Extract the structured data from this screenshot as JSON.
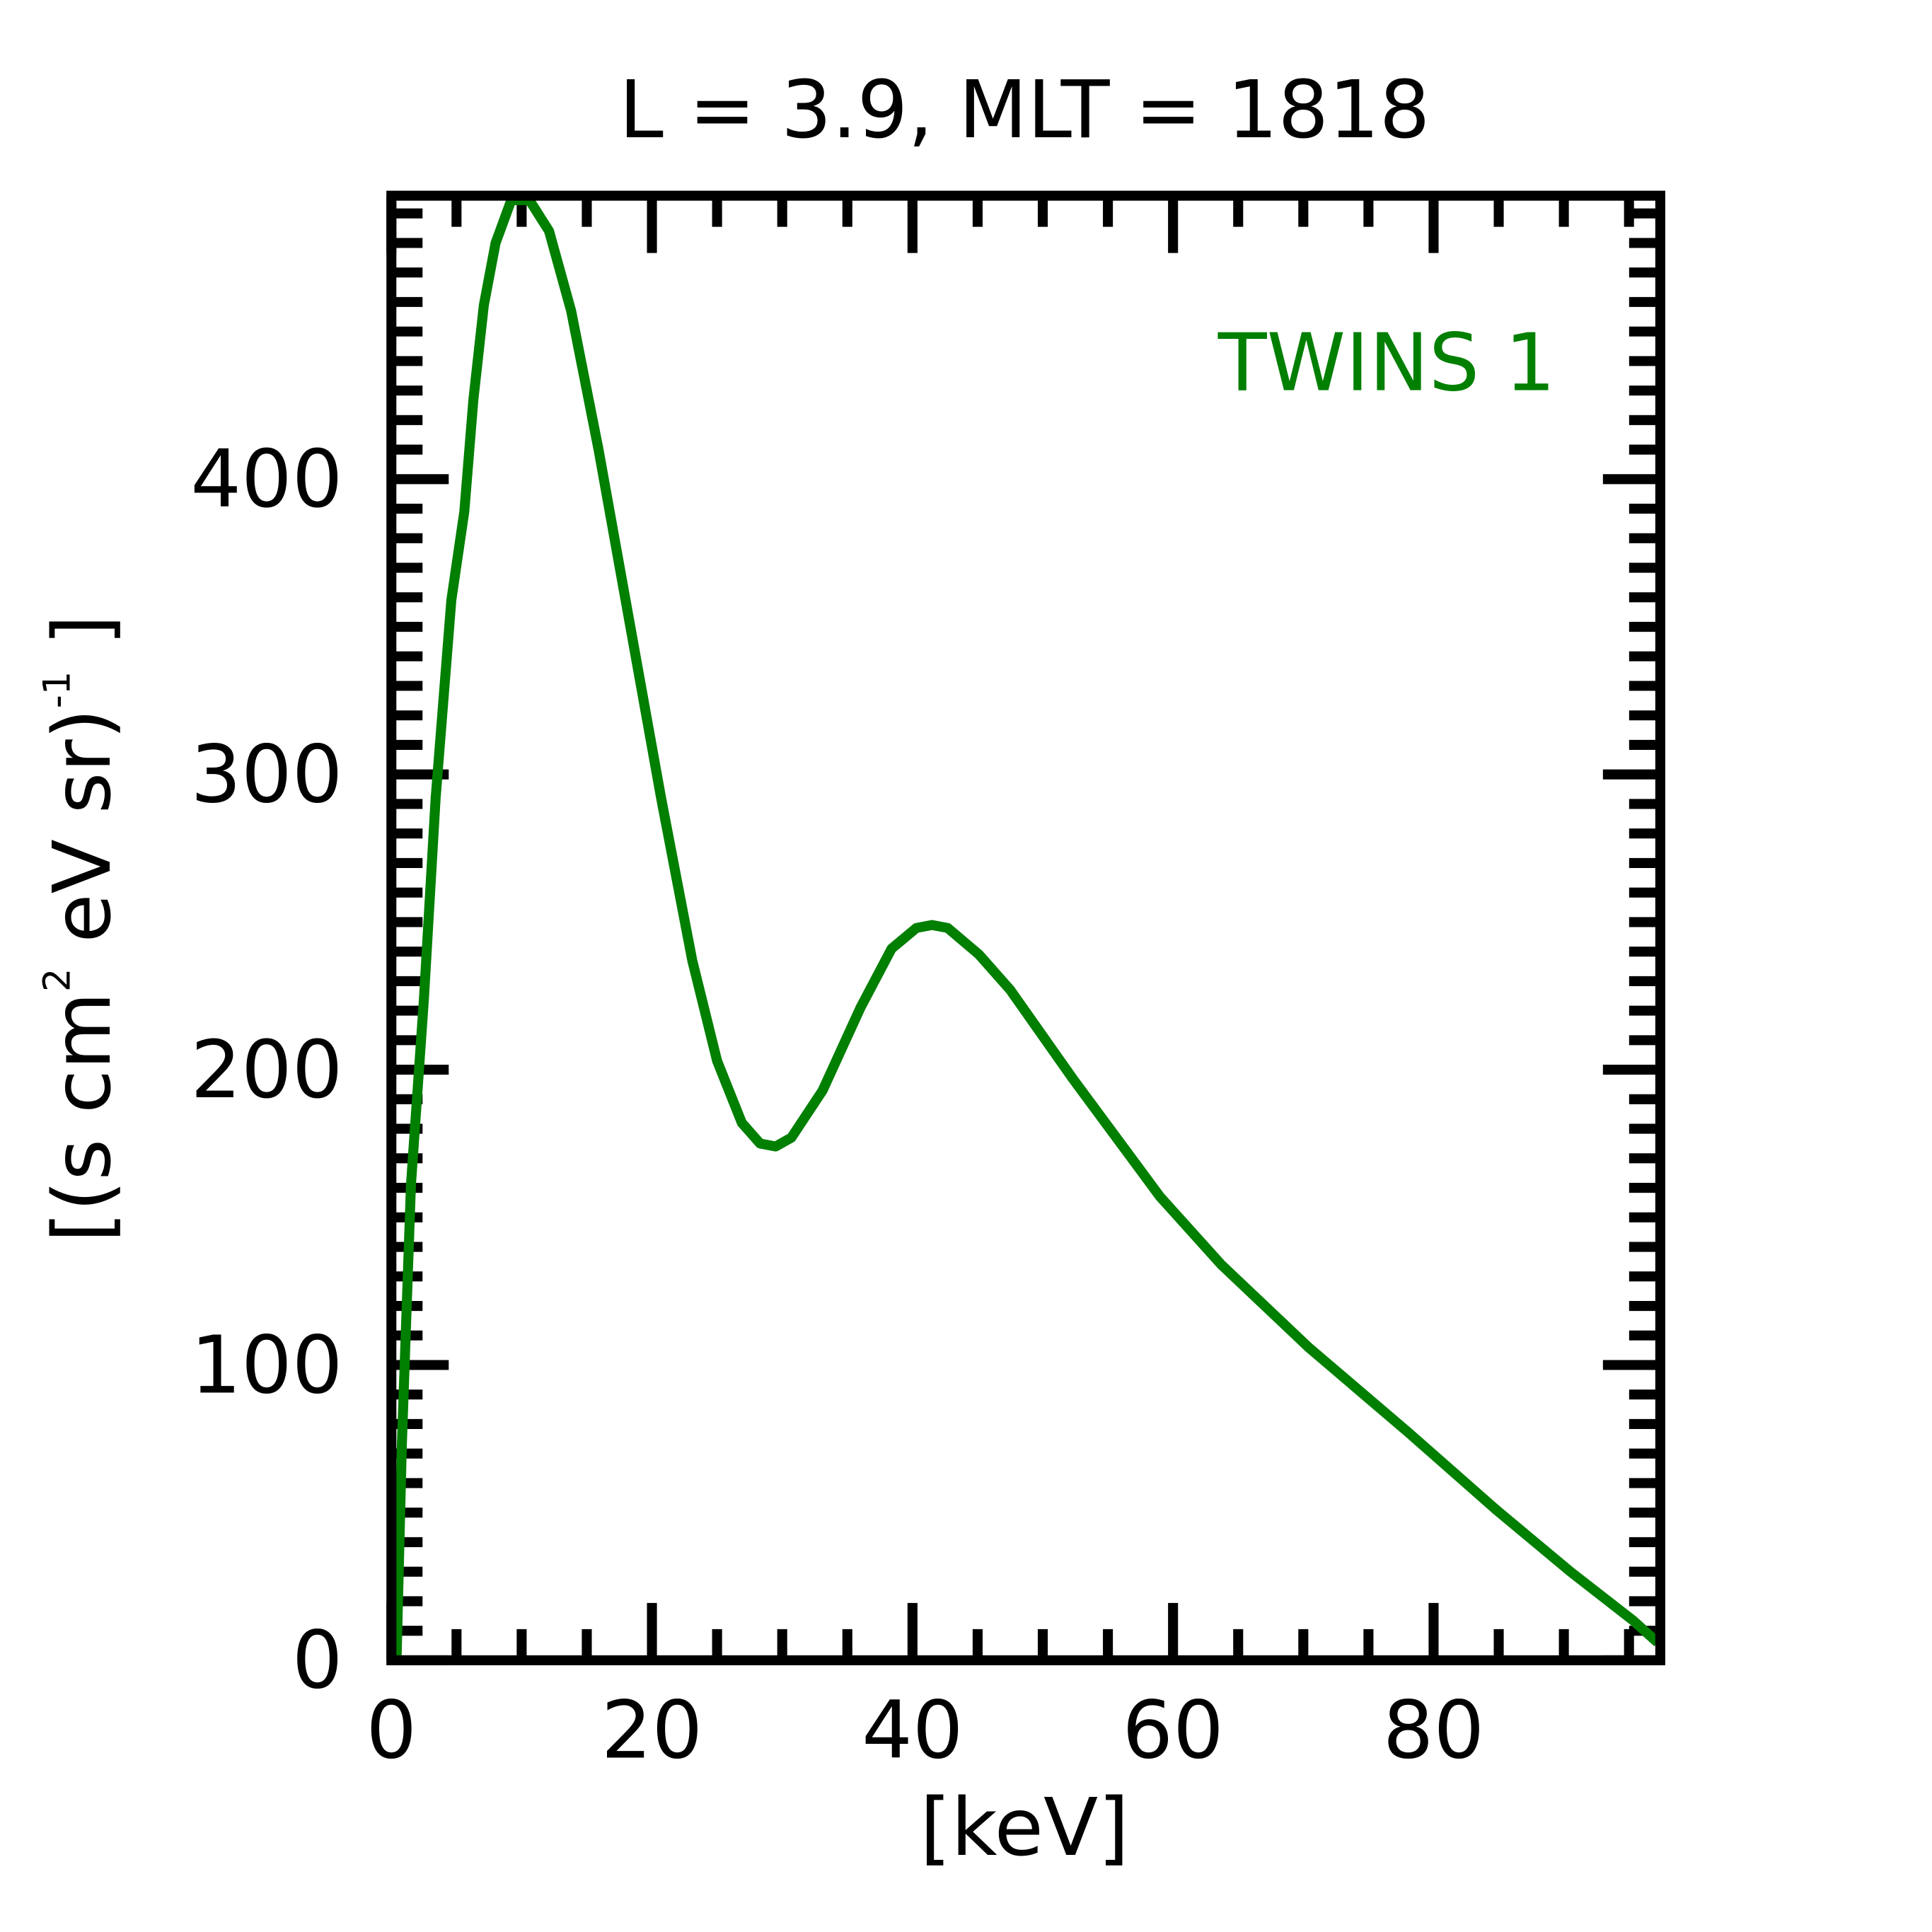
{
  "chart_data": {
    "type": "line",
    "title": "L =  3.9, MLT = 1818",
    "xlabel": "[keV]",
    "ylabel": "[(s cm² eV sr)⁻¹]",
    "ylabel_parts": {
      "open": "[(s cm",
      "sq": "2",
      "mid": " eV sr)",
      "inv": "-1",
      "close": " ]"
    },
    "xlim": [
      0,
      97.4
    ],
    "ylim": [
      0,
      496
    ],
    "xticks": [
      0,
      20,
      40,
      60,
      80
    ],
    "xtick_labels": [
      "0",
      "20",
      "40",
      "60",
      "80"
    ],
    "x_minor_step": 5,
    "yticks": [
      0,
      100,
      200,
      300,
      400
    ],
    "ytick_labels": [
      "0",
      "100",
      "200",
      "300",
      "400"
    ],
    "y_minor_step": 10,
    "grid": false,
    "legend_placement": "top-right",
    "series": [
      {
        "name": "TWINS 1",
        "color": "#007f00",
        "x": [
          0.4,
          0.8,
          1.5,
          2.5,
          3.4,
          4.6,
          5.6,
          6.3,
          7.1,
          8.0,
          9.2,
          10.6,
          12.1,
          13.8,
          15.9,
          18.3,
          20.7,
          23.1,
          25.0,
          26.9,
          28.3,
          29.5,
          30.7,
          33.1,
          36.0,
          38.4,
          40.3,
          41.5,
          42.7,
          45.1,
          47.5,
          52.3,
          59.0,
          63.7,
          70.4,
          78.1,
          84.8,
          90.5,
          95.3,
          97.2
        ],
        "y": [
          1,
          73,
          161,
          224,
          292,
          359,
          389,
          427,
          459,
          480,
          494.5,
          494.5,
          484,
          457,
          410,
          351,
          292,
          237,
          203,
          182,
          175,
          174,
          177,
          193,
          221,
          241,
          248,
          249,
          248,
          239,
          227,
          197,
          157,
          134,
          106,
          77,
          51,
          30,
          13.5,
          6
        ]
      }
    ]
  }
}
